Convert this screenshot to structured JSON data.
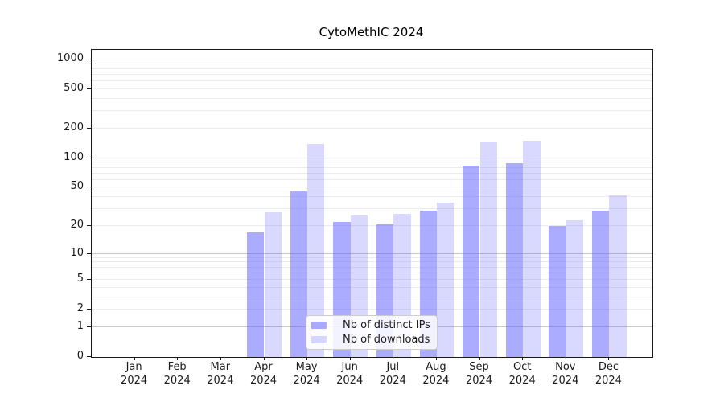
{
  "title": "CytoMethIC 2024",
  "chart_data": {
    "type": "bar",
    "title": "CytoMethIC 2024",
    "x_axis": {
      "months": [
        "Jan",
        "Feb",
        "Mar",
        "Apr",
        "May",
        "Jun",
        "Jul",
        "Aug",
        "Sep",
        "Oct",
        "Nov",
        "Dec"
      ],
      "year": "2024"
    },
    "y_axis": {
      "scale": "log1p",
      "ticks": [
        0,
        1,
        2,
        5,
        10,
        20,
        50,
        100,
        200,
        500,
        1000
      ],
      "minor_gridlines": [
        2,
        3,
        4,
        5,
        6,
        7,
        8,
        9,
        20,
        30,
        40,
        50,
        60,
        70,
        80,
        90,
        200,
        300,
        400,
        500,
        600,
        700,
        800,
        900
      ],
      "major_gridlines": [
        1,
        10,
        100,
        1000
      ],
      "ylim": [
        0,
        1252
      ]
    },
    "series": [
      {
        "name": "Nb of distinct IPs",
        "color": "rgba(102,102,255,0.55)",
        "values": [
          0,
          0,
          0,
          17,
          46,
          22,
          21,
          29,
          84,
          89,
          20,
          29
        ]
      },
      {
        "name": "Nb of downloads",
        "color": "rgba(102,102,255,0.25)",
        "values": [
          0,
          0,
          0,
          28,
          140,
          26,
          27,
          35,
          148,
          152,
          23,
          42
        ]
      }
    ],
    "legend": {
      "position": "lower center"
    },
    "grid": {
      "major_color": "#c6c6c6",
      "minor_color": "#ececec"
    }
  }
}
